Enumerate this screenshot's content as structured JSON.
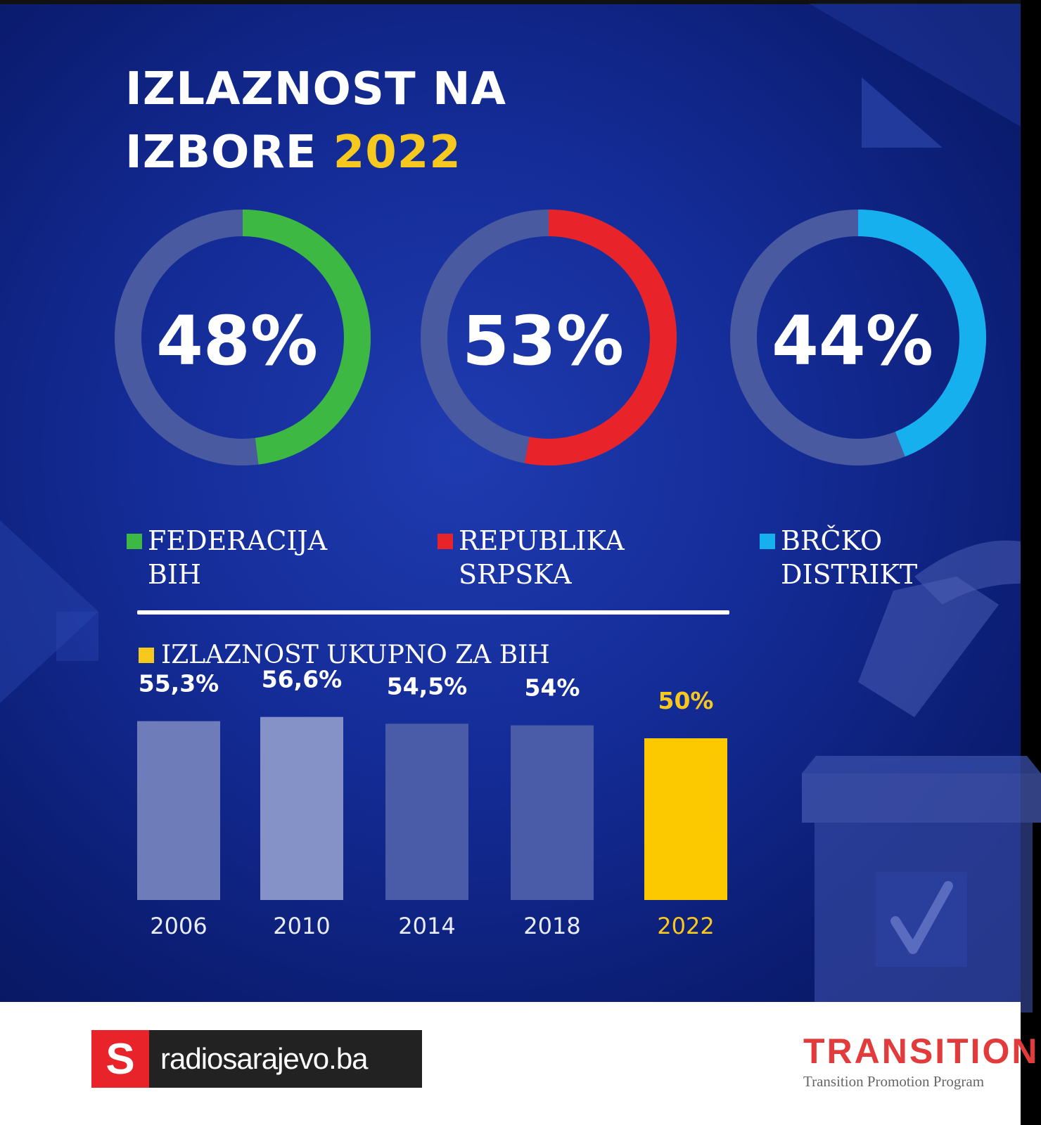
{
  "title": {
    "line1": "IZLAZNOST NA",
    "line2": "IZBORE",
    "year": "2022"
  },
  "chart_data": [
    {
      "type": "pie",
      "values": [
        48,
        53,
        44
      ],
      "value_labels": [
        "48%",
        "53%",
        "44%"
      ],
      "categories": [
        "FEDERACIJA BIH",
        "REPUBLIKA SRPSKA",
        "BRČKO DISTRIKT"
      ],
      "legend": [
        {
          "line1": "FEDERACIJA",
          "line2": "BIH",
          "color": "#3db843"
        },
        {
          "line1": "REPUBLIKA",
          "line2": "SRPSKA",
          "color": "#e8232a"
        },
        {
          "line1": "BRČKO",
          "line2": "DISTRIKT",
          "color": "#17b0ee"
        }
      ],
      "track_color": "#4a5aa0"
    },
    {
      "type": "bar",
      "title": "IZLAZNOST UKUPNO ZA BIH",
      "categories": [
        "2006",
        "2010",
        "2014",
        "2018",
        "2022"
      ],
      "values": [
        55.3,
        56.6,
        54.5,
        54,
        50
      ],
      "value_labels": [
        "55,3%",
        "56,6%",
        "54,5%",
        "54%",
        "50%"
      ],
      "ylim": [
        0,
        60
      ],
      "colors": [
        "#6f7cba",
        "#8592c8",
        "#4a5ba8",
        "#4a5ba8",
        "#fcc900"
      ],
      "highlight_color": "#f7c81e"
    }
  ],
  "footer": {
    "logo_letter": "S",
    "site": "radiosarajevo.ba",
    "partner_name": "TRANSITION",
    "partner_tagline": "Transition Promotion Program"
  }
}
